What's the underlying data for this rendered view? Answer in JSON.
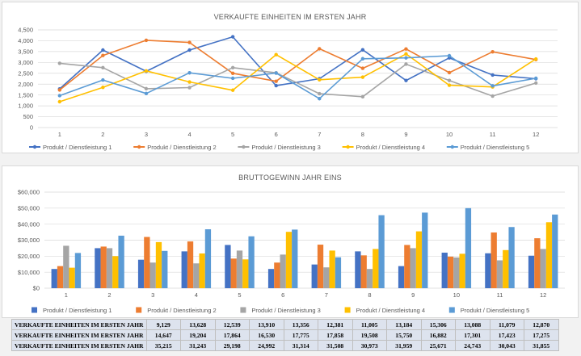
{
  "colors": [
    "#4472c4",
    "#ed7d31",
    "#a5a5a5",
    "#ffc000",
    "#5b9bd5"
  ],
  "chart_data": [
    {
      "type": "line",
      "title": "VERKAUFTE EINHEITEN IM ERSTEN JAHR",
      "x": [
        "1",
        "2",
        "3",
        "4",
        "5",
        "6",
        "7",
        "8",
        "9",
        "10",
        "11",
        "12"
      ],
      "ylim": [
        0,
        4500
      ],
      "yticks": [
        0,
        500,
        1000,
        1500,
        2000,
        2500,
        3000,
        3500,
        4000,
        4500
      ],
      "ytick_labels": [
        "0",
        "500",
        "1,000",
        "1,500",
        "2,000",
        "2,500",
        "3,000",
        "3,500",
        "4,000",
        "4,500"
      ],
      "legend_position": "bottom",
      "series": [
        {
          "name": "Produkt / Dienstleistung 1",
          "values": [
            1780,
            3570,
            2590,
            3570,
            4180,
            1930,
            2250,
            3580,
            2170,
            3210,
            2420,
            2250
          ]
        },
        {
          "name": "Produkt / Dienstleistung 2",
          "values": [
            1730,
            3320,
            4020,
            3920,
            2500,
            2130,
            3630,
            2730,
            3620,
            2530,
            3490,
            3130
          ]
        },
        {
          "name": "Produkt / Dienstleistung 3",
          "values": [
            2960,
            2760,
            1790,
            1840,
            2760,
            2520,
            1560,
            1420,
            2920,
            2170,
            1450,
            2050
          ]
        },
        {
          "name": "Produkt / Dienstleistung 4",
          "values": [
            1190,
            1850,
            2610,
            2100,
            1720,
            3360,
            2200,
            2320,
            3390,
            1950,
            1870,
            3160
          ]
        },
        {
          "name": "Produkt / Dienstleistung 5",
          "values": [
            1470,
            2190,
            1570,
            2520,
            2270,
            2510,
            1330,
            3170,
            3210,
            3310,
            1920,
            2270
          ]
        }
      ]
    },
    {
      "type": "bar",
      "title": "BRUTTOGEWINN JAHR EINS",
      "categories": [
        "1",
        "2",
        "3",
        "4",
        "5",
        "6",
        "7",
        "8",
        "9",
        "10",
        "11",
        "12"
      ],
      "ylim": [
        0,
        60000
      ],
      "yticks": [
        0,
        10000,
        20000,
        30000,
        40000,
        50000,
        60000
      ],
      "ytick_labels": [
        "$0",
        "$10,000",
        "$20,000",
        "$30,000",
        "$40,000",
        "$50,000",
        "$60,000"
      ],
      "legend_position": "bottom",
      "series": [
        {
          "name": "Produkt / Dienstleistung 1",
          "values": [
            12000,
            25000,
            17800,
            23000,
            27000,
            12000,
            14800,
            23000,
            13800,
            22200,
            21800,
            20300
          ]
        },
        {
          "name": "Produkt / Dienstleistung 2",
          "values": [
            13800,
            26000,
            32000,
            29200,
            18500,
            16000,
            27200,
            20500,
            27000,
            19700,
            34800,
            31200
          ]
        },
        {
          "name": "Produkt / Dienstleistung 3",
          "values": [
            26500,
            25000,
            16000,
            15500,
            23500,
            21000,
            13000,
            12000,
            25000,
            19200,
            17400,
            24500
          ]
        },
        {
          "name": "Produkt / Dienstleistung 4",
          "values": [
            12800,
            20000,
            28800,
            21700,
            18000,
            35200,
            23500,
            24500,
            35500,
            21500,
            23800,
            41200
          ]
        },
        {
          "name": "Produkt / Dienstleistung 5",
          "values": [
            22000,
            32800,
            23300,
            36800,
            32400,
            36600,
            19300,
            45600,
            47200,
            50000,
            38200,
            46000
          ]
        }
      ]
    }
  ],
  "table": {
    "rows": [
      {
        "label": "VERKAUFTE EINHEITEN IM ERSTEN JAHR",
        "values": [
          "9,129",
          "13,628",
          "12,539",
          "13,910",
          "13,356",
          "12,381",
          "11,005",
          "13,184",
          "15,306",
          "13,088",
          "11,079",
          "12,870"
        ]
      },
      {
        "label": "VERKAUFTE EINHEITEN IM ERSTEN JAHR",
        "values": [
          "14,647",
          "19,204",
          "17,864",
          "16,530",
          "17,775",
          "17,858",
          "19,508",
          "15,750",
          "16,882",
          "17,301",
          "17,423",
          "17,275"
        ]
      },
      {
        "label": "VERKAUFTE EINHEITEN IM ERSTEN JAHR",
        "values": [
          "35,215",
          "31,243",
          "29,198",
          "24,992",
          "31,314",
          "31,508",
          "30,973",
          "31,959",
          "25,671",
          "24,743",
          "30,043",
          "31,855"
        ]
      }
    ]
  }
}
